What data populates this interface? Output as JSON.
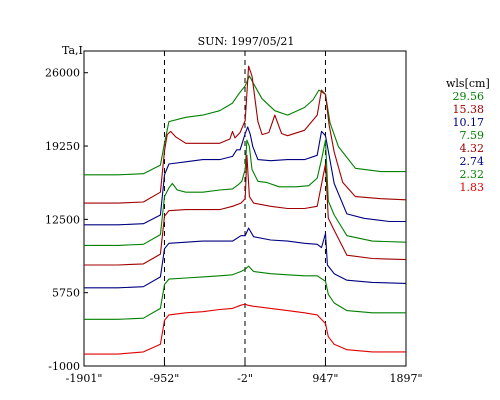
{
  "chart_data": {
    "type": "line",
    "title": "SUN: 1997/05/21",
    "ylabel": "Ta,I",
    "xlabel": "",
    "x_ticks": [
      "-1901\"",
      "-952\"",
      "-2\"",
      "947\"",
      "1897\""
    ],
    "x_tick_values": [
      -1901,
      -952,
      -2,
      947,
      1897
    ],
    "y_ticks": [
      "26000",
      "19250",
      "12500",
      "5750",
      "-1000"
    ],
    "y_tick_values": [
      26000,
      19250,
      12500,
      5750,
      -1000
    ],
    "xlim": [
      -1901,
      1897
    ],
    "ylim": [
      -1000,
      28000
    ],
    "dashed_x": [
      -952,
      -2,
      947
    ],
    "grid": false,
    "legend_title": "wls[cm]",
    "legend_position": "right",
    "series": [
      {
        "name": "29.56",
        "color": "#008000",
        "x": [
          -1901,
          -1500,
          -1200,
          -1000,
          -952,
          -900,
          -700,
          -500,
          -300,
          -150,
          -80,
          0,
          50,
          120,
          200,
          350,
          500,
          700,
          800,
          870,
          947,
          1000,
          1100,
          1300,
          1600,
          1897
        ],
        "y": [
          16600,
          16600,
          16700,
          17500,
          19500,
          21500,
          21900,
          22100,
          22500,
          23200,
          24000,
          24800,
          25700,
          24700,
          23600,
          22500,
          22100,
          22800,
          23500,
          24400,
          24000,
          21400,
          19200,
          17200,
          16900,
          16900
        ]
      },
      {
        "name": "15.38",
        "color": "#a00000",
        "x": [
          -1901,
          -1500,
          -1200,
          -1000,
          -952,
          -920,
          -880,
          -820,
          -700,
          -500,
          -300,
          -180,
          -150,
          -120,
          -60,
          0,
          40,
          80,
          150,
          200,
          280,
          350,
          430,
          500,
          700,
          850,
          900,
          947,
          990,
          1050,
          1150,
          1300,
          1600,
          1897
        ],
        "y": [
          14000,
          14000,
          14100,
          15000,
          18800,
          20300,
          20600,
          20100,
          19500,
          19500,
          19500,
          19900,
          20600,
          20000,
          20500,
          21600,
          26600,
          25700,
          21500,
          20300,
          20500,
          22100,
          20400,
          20200,
          20700,
          22100,
          24400,
          24000,
          21200,
          18700,
          15900,
          14600,
          14400,
          14300
        ]
      },
      {
        "name": "10.17",
        "color": "#000080",
        "x": [
          -1901,
          -1500,
          -1200,
          -1000,
          -952,
          -900,
          -700,
          -500,
          -300,
          -150,
          -100,
          -60,
          0,
          30,
          60,
          90,
          150,
          300,
          500,
          700,
          850,
          900,
          947,
          990,
          1050,
          1200,
          1400,
          1700,
          1897
        ],
        "y": [
          12000,
          12000,
          12100,
          12900,
          16600,
          17600,
          17800,
          18000,
          18000,
          18300,
          18900,
          18900,
          20400,
          21000,
          20300,
          19200,
          18000,
          17900,
          18000,
          18000,
          18400,
          20600,
          20200,
          18400,
          15800,
          13000,
          12600,
          12300,
          12300
        ]
      },
      {
        "name": "7.59",
        "color": "#008000",
        "x": [
          -1901,
          -1500,
          -1200,
          -1000,
          -952,
          -900,
          -860,
          -800,
          -700,
          -500,
          -300,
          -150,
          -80,
          -40,
          0,
          20,
          50,
          80,
          150,
          250,
          400,
          600,
          750,
          850,
          900,
          947,
          980,
          1050,
          1200,
          1500,
          1897
        ],
        "y": [
          10100,
          10100,
          10200,
          11100,
          14600,
          15400,
          15800,
          15200,
          15000,
          15000,
          15200,
          15300,
          15700,
          16000,
          17100,
          19800,
          19200,
          17100,
          16000,
          15900,
          15500,
          15500,
          15600,
          16300,
          18000,
          19800,
          14200,
          12900,
          11000,
          10500,
          10400
        ]
      },
      {
        "name": "4.32",
        "color": "#a00000",
        "x": [
          -1901,
          -1500,
          -1200,
          -1000,
          -952,
          -900,
          -700,
          -500,
          -300,
          -150,
          -50,
          0,
          20,
          50,
          100,
          300,
          500,
          700,
          850,
          947,
          980,
          1050,
          1200,
          1500,
          1897
        ],
        "y": [
          8300,
          8300,
          8400,
          9300,
          12800,
          13300,
          13400,
          13400,
          13400,
          13700,
          14000,
          14400,
          18400,
          14600,
          14000,
          13700,
          13500,
          13500,
          13700,
          17600,
          12600,
          11500,
          9200,
          8900,
          8800
        ]
      },
      {
        "name": "2.74",
        "color": "#000080",
        "x": [
          -1901,
          -1500,
          -1200,
          -1000,
          -952,
          -900,
          -700,
          -500,
          -300,
          -150,
          -50,
          0,
          40,
          100,
          300,
          500,
          700,
          850,
          900,
          947,
          970,
          1050,
          1200,
          1500,
          1897
        ],
        "y": [
          6200,
          6200,
          6300,
          7200,
          9800,
          10300,
          10400,
          10500,
          10500,
          10500,
          11000,
          11000,
          11700,
          10900,
          10600,
          10500,
          10300,
          10200,
          9900,
          11200,
          8300,
          7500,
          6900,
          6700,
          6600
        ]
      },
      {
        "name": "2.32",
        "color": "#008000",
        "x": [
          -1901,
          -1500,
          -1200,
          -1000,
          -952,
          -900,
          -700,
          -500,
          -300,
          -150,
          -50,
          0,
          40,
          100,
          300,
          500,
          700,
          850,
          947,
          980,
          1050,
          1200,
          1500,
          1897
        ],
        "y": [
          3300,
          3300,
          3400,
          4300,
          6500,
          7000,
          7100,
          7200,
          7300,
          7400,
          7700,
          7900,
          8200,
          7700,
          7500,
          7400,
          7300,
          7300,
          6800,
          5600,
          4800,
          4100,
          3900,
          3900
        ]
      },
      {
        "name": "1.83",
        "color": "#e00000",
        "x": [
          -1901,
          -1500,
          -1200,
          -1000,
          -952,
          -900,
          -700,
          -500,
          -300,
          -150,
          -50,
          0,
          30,
          100,
          300,
          500,
          700,
          850,
          947,
          980,
          1050,
          1200,
          1500,
          1897
        ],
        "y": [
          100,
          100,
          300,
          1000,
          3200,
          3700,
          3900,
          4000,
          4200,
          4300,
          4600,
          4700,
          4600,
          4500,
          4300,
          4100,
          3900,
          3700,
          2900,
          1700,
          1000,
          500,
          300,
          300
        ]
      }
    ]
  }
}
